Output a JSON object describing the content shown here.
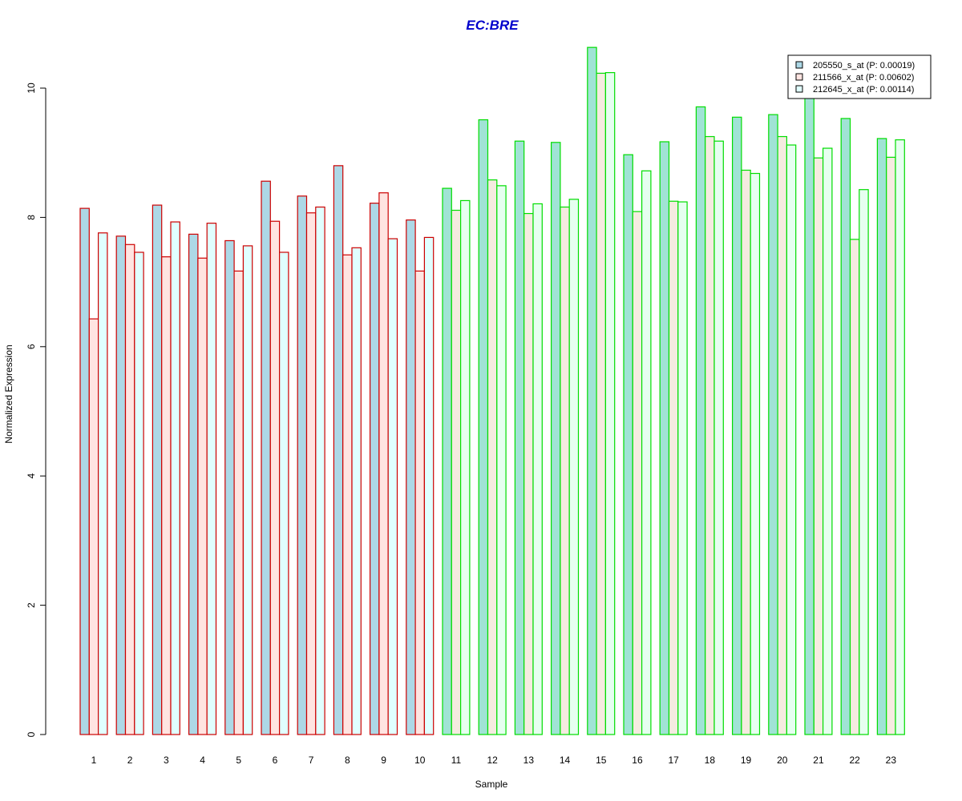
{
  "chart_data": {
    "type": "bar",
    "title": "EC:BRE",
    "title_color": "#0000cc",
    "xlabel": "Sample",
    "ylabel": "Normalized Expression",
    "ylim": [
      0,
      10.7
    ],
    "y_ticks": [
      "0",
      "2",
      "4",
      "6",
      "8",
      "10"
    ],
    "grid": false,
    "legend_position": "top-right",
    "categories": [
      "1",
      "2",
      "3",
      "4",
      "5",
      "6",
      "7",
      "8",
      "9",
      "10",
      "11",
      "12",
      "13",
      "14",
      "15",
      "16",
      "17",
      "18",
      "19",
      "20",
      "21",
      "22",
      "23"
    ],
    "group_border_colors": [
      "#cc0000",
      "#cc0000",
      "#cc0000",
      "#cc0000",
      "#cc0000",
      "#cc0000",
      "#cc0000",
      "#cc0000",
      "#cc0000",
      "#cc0000",
      "#00dd00",
      "#00dd00",
      "#00dd00",
      "#00dd00",
      "#00dd00",
      "#00dd00",
      "#00dd00",
      "#00dd00",
      "#00dd00",
      "#00dd00",
      "#00dd00",
      "#00dd00",
      "#00dd00"
    ],
    "series": [
      {
        "name": "205550_s_at (P: 0.00019)",
        "fill_primary": "#add8e6",
        "fill_secondary": "#a0e3d5",
        "values": [
          8.14,
          7.71,
          8.19,
          7.74,
          7.64,
          8.56,
          8.33,
          8.8,
          8.22,
          7.96,
          8.45,
          9.51,
          9.18,
          9.16,
          10.63,
          8.97,
          9.17,
          9.71,
          9.55,
          9.59,
          9.84,
          9.53,
          9.22
        ]
      },
      {
        "name": "211566_x_at (P: 0.00602)",
        "fill_primary": "#ffe4e1",
        "fill_secondary": "#f5ebe0",
        "values": [
          6.43,
          7.58,
          7.39,
          7.37,
          7.17,
          7.94,
          8.07,
          7.42,
          8.38,
          7.17,
          8.11,
          8.58,
          8.06,
          8.16,
          10.23,
          8.09,
          8.25,
          9.25,
          8.73,
          9.25,
          8.92,
          7.66,
          8.93
        ]
      },
      {
        "name": "212645_x_at (P: 0.00114)",
        "fill_primary": "#e0ffff",
        "fill_secondary": "#e6fff0",
        "values": [
          7.76,
          7.46,
          7.93,
          7.91,
          7.56,
          7.46,
          8.16,
          7.53,
          7.67,
          7.69,
          8.26,
          8.49,
          8.21,
          8.28,
          10.24,
          8.72,
          8.24,
          9.18,
          8.68,
          9.12,
          9.07,
          8.43,
          9.2
        ]
      }
    ],
    "legend_border_color": "#000000"
  }
}
